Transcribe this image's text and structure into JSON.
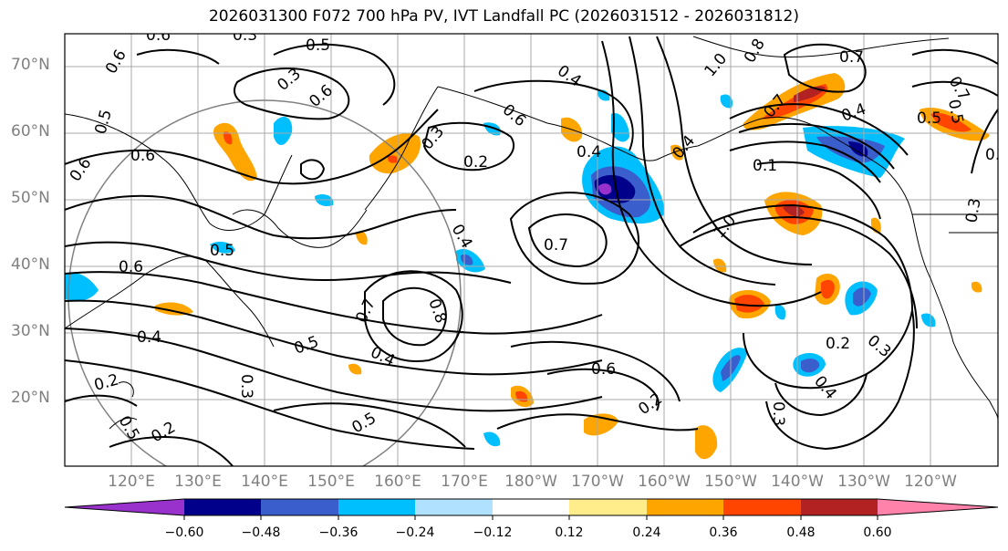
{
  "title": "2026031300 F072 700 hPa PV, IVT Landfall PC (2026031512 - 2026031812)",
  "lat_labels": [
    "70°N",
    "60°N",
    "50°N",
    "40°N",
    "30°N",
    "20°N"
  ],
  "lon_labels": [
    "120°E",
    "130°E",
    "140°E",
    "150°E",
    "160°E",
    "170°E",
    "180°W",
    "170°W",
    "160°W",
    "150°W",
    "140°W",
    "130°W",
    "120°W"
  ],
  "colorbar": {
    "ticks": [
      "−0.60",
      "−0.48",
      "−0.36",
      "−0.24",
      "−0.12",
      "0.12",
      "0.24",
      "0.36",
      "0.48",
      "0.60"
    ],
    "colors": [
      "#9932cc",
      "#00008b",
      "#3a5fcd",
      "#00bfff",
      "#b0e2ff",
      "#ffffff",
      "#ffec8b",
      "#ffa500",
      "#ff4500",
      "#b22222",
      "#ff82ab"
    ]
  },
  "contour_labels": [
    "0.6",
    "0.5",
    "0.6",
    "0.3",
    "0.6",
    "0.4",
    "0.7",
    "1.0",
    "0.8",
    "0.7",
    "0.5",
    "0.5",
    "0.6",
    "0.6",
    "0.2",
    "0.3",
    "0.6",
    "0.4",
    "0.4",
    "0.7",
    "0.5",
    "0.6",
    "0.4",
    "0.5",
    "0.3",
    "0.4",
    "0.7",
    "0.8",
    "0.6",
    "0.5",
    "0.4",
    "0.3",
    "0.3",
    "0.2",
    "0.2",
    "0.2",
    "0.5",
    "0.2",
    "0.3",
    "0.4",
    "0.3",
    "1.0",
    "0.7",
    "0.4",
    "0.1",
    "0.3",
    "0.5"
  ]
}
